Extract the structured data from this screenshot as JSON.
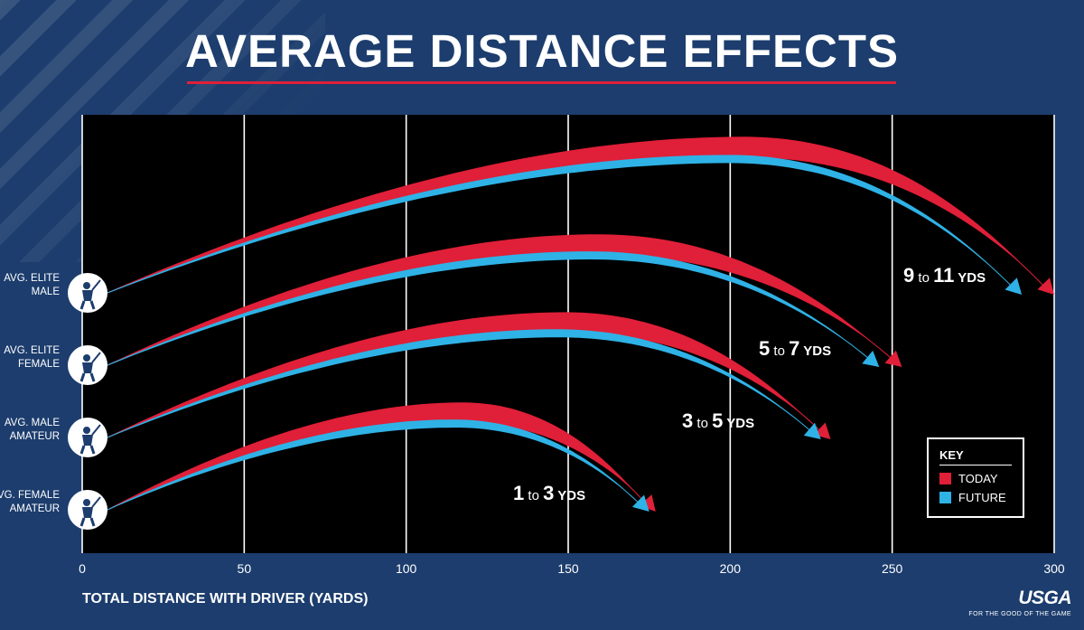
{
  "title": "AVERAGE DISTANCE EFFECTS",
  "colors": {
    "background": "#1c3d6d",
    "plot_area": "#000000",
    "today": "#e01f38",
    "future": "#2fb2e6",
    "text": "#ffffff",
    "icon": "#1c3d6d"
  },
  "key": {
    "title": "KEY",
    "items": [
      {
        "label": "TODAY",
        "color": "#e01f38"
      },
      {
        "label": "FUTURE",
        "color": "#2fb2e6"
      }
    ]
  },
  "brand": {
    "logo": "USGA",
    "tagline": "FOR THE GOOD OF THE GAME"
  },
  "chart_data": {
    "type": "line",
    "title": "AVERAGE DISTANCE EFFECTS",
    "xlabel": "TOTAL DISTANCE WITH DRIVER (YARDS)",
    "ylabel": "",
    "xlim": [
      0,
      300
    ],
    "xticks": [
      0,
      50,
      100,
      150,
      200,
      250,
      300
    ],
    "grid": "vertical",
    "legend": "bottom-right",
    "series": [
      {
        "category": "AVG. ELITE MALE",
        "label_lines": [
          "AVG. ELITE",
          "MALE"
        ],
        "icon": "male-golfer-icon",
        "today": {
          "apex_yards": 205,
          "total_yards": 300
        },
        "future": {
          "apex_yards": 200,
          "total_yards": 290
        },
        "change": {
          "from": "9",
          "to": "11",
          "unit": "YDS",
          "joiner": "to"
        }
      },
      {
        "category": "AVG. ELITE FEMALE",
        "label_lines": [
          "AVG. ELITE",
          "FEMALE"
        ],
        "icon": "female-golfer-icon",
        "today": {
          "apex_yards": 160,
          "total_yards": 253
        },
        "future": {
          "apex_yards": 157,
          "total_yards": 246
        },
        "change": {
          "from": "5",
          "to": "7",
          "unit": "YDS",
          "joiner": "to"
        }
      },
      {
        "category": "AVG. MALE AMATEUR",
        "label_lines": [
          "AVG. MALE",
          "AMATEUR"
        ],
        "icon": "male-golfer-icon",
        "today": {
          "apex_yards": 150,
          "total_yards": 231
        },
        "future": {
          "apex_yards": 147,
          "total_yards": 228
        },
        "change": {
          "from": "3",
          "to": "5",
          "unit": "YDS",
          "joiner": "to"
        }
      },
      {
        "category": "AVG. FEMALE AMATEUR",
        "label_lines": [
          "AVG. FEMALE",
          "AMATEUR"
        ],
        "icon": "female-golfer-icon",
        "today": {
          "apex_yards": 118,
          "total_yards": 177
        },
        "future": {
          "apex_yards": 115,
          "total_yards": 175
        },
        "change": {
          "from": "1",
          "to": "3",
          "unit": "YDS",
          "joiner": "to"
        }
      }
    ]
  }
}
